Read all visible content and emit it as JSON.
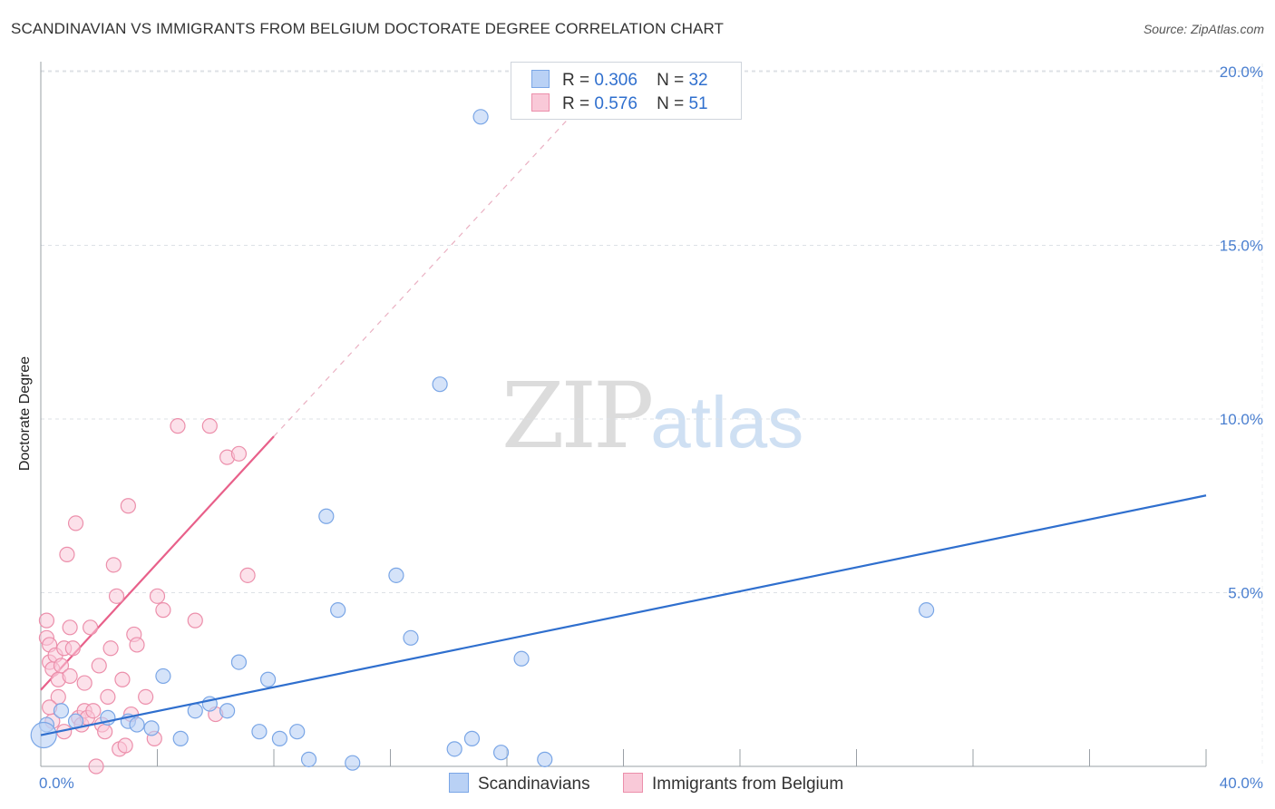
{
  "header": {
    "title": "SCANDINAVIAN VS IMMIGRANTS FROM BELGIUM DOCTORATE DEGREE CORRELATION CHART",
    "source": "Source: ZipAtlas.com"
  },
  "watermark": {
    "zip": "ZIP",
    "atlas": "atlas"
  },
  "legend": {
    "rows": [
      {
        "r_label": "R =",
        "r_value": "0.306",
        "n_label": "N =",
        "n_value": "32",
        "color": "#7aa6e6",
        "fill": "#b9d1f5"
      },
      {
        "r_label": "R =",
        "r_value": "0.576",
        "n_label": "N =",
        "n_value": "51",
        "color": "#ec8fab",
        "fill": "#f9c9d8"
      }
    ]
  },
  "bottom_legend": {
    "items": [
      {
        "label": "Scandinavians",
        "color": "#7aa6e6",
        "fill": "#b9d1f5"
      },
      {
        "label": "Immigrants from Belgium",
        "color": "#ec8fab",
        "fill": "#f9c9d8"
      }
    ]
  },
  "chart_data": {
    "type": "scatter",
    "title": "SCANDINAVIAN VS IMMIGRANTS FROM BELGIUM DOCTORATE DEGREE CORRELATION CHART",
    "xlabel": "",
    "ylabel": "Doctorate Degree",
    "xlim": [
      0,
      40
    ],
    "ylim": [
      0,
      21
    ],
    "x_tick_labels": [
      "0.0%",
      "40.0%"
    ],
    "y_ticks": [
      5,
      10,
      15,
      20
    ],
    "y_tick_labels": [
      "5.0%",
      "10.0%",
      "15.0%",
      "20.0%"
    ],
    "grid": true,
    "series": [
      {
        "name": "Scandinavians",
        "color": "#2f6fce",
        "marker_fill": "#b9d1f5",
        "marker_stroke": "#7aa6e6",
        "points": [
          [
            0.2,
            1.2
          ],
          [
            0.7,
            1.6
          ],
          [
            1.2,
            1.3
          ],
          [
            2.3,
            1.4
          ],
          [
            3.0,
            1.3
          ],
          [
            3.3,
            1.2
          ],
          [
            3.8,
            1.1
          ],
          [
            4.2,
            2.6
          ],
          [
            4.8,
            0.8
          ],
          [
            5.3,
            1.6
          ],
          [
            5.8,
            1.8
          ],
          [
            6.4,
            1.6
          ],
          [
            6.8,
            3.0
          ],
          [
            7.5,
            1.0
          ],
          [
            7.8,
            2.5
          ],
          [
            8.2,
            0.8
          ],
          [
            8.8,
            1.0
          ],
          [
            9.2,
            0.2
          ],
          [
            9.8,
            7.2
          ],
          [
            10.2,
            4.5
          ],
          [
            10.7,
            0.1
          ],
          [
            12.2,
            5.5
          ],
          [
            12.7,
            3.7
          ],
          [
            13.7,
            11.0
          ],
          [
            14.2,
            0.5
          ],
          [
            14.8,
            0.8
          ],
          [
            15.1,
            18.7
          ],
          [
            15.8,
            0.4
          ],
          [
            16.5,
            3.1
          ],
          [
            17.3,
            0.2
          ],
          [
            30.4,
            4.5
          ],
          [
            0.1,
            0.9
          ]
        ],
        "trendline": {
          "x": [
            0,
            40
          ],
          "y": [
            0.9,
            7.8
          ],
          "dashed_extension": false
        }
      },
      {
        "name": "Immigrants from Belgium",
        "color": "#e8608a",
        "marker_fill": "#f9c9d8",
        "marker_stroke": "#ec8fab",
        "points": [
          [
            0.2,
            4.2
          ],
          [
            0.2,
            3.7
          ],
          [
            0.3,
            3.5
          ],
          [
            0.3,
            3.0
          ],
          [
            0.4,
            2.8
          ],
          [
            0.5,
            3.2
          ],
          [
            0.6,
            2.5
          ],
          [
            0.7,
            2.9
          ],
          [
            0.8,
            3.4
          ],
          [
            0.9,
            6.1
          ],
          [
            1.0,
            4.0
          ],
          [
            1.1,
            3.4
          ],
          [
            1.2,
            7.0
          ],
          [
            1.3,
            1.4
          ],
          [
            1.4,
            1.2
          ],
          [
            1.5,
            1.6
          ],
          [
            1.6,
            1.4
          ],
          [
            1.7,
            4.0
          ],
          [
            1.8,
            1.6
          ],
          [
            1.9,
            0.0
          ],
          [
            2.0,
            2.9
          ],
          [
            2.1,
            1.2
          ],
          [
            2.2,
            1.0
          ],
          [
            2.4,
            3.4
          ],
          [
            2.5,
            5.8
          ],
          [
            2.6,
            4.9
          ],
          [
            2.7,
            0.5
          ],
          [
            2.8,
            2.5
          ],
          [
            2.9,
            0.6
          ],
          [
            3.0,
            7.5
          ],
          [
            3.1,
            1.5
          ],
          [
            3.2,
            3.8
          ],
          [
            3.3,
            3.5
          ],
          [
            3.6,
            2.0
          ],
          [
            3.9,
            0.8
          ],
          [
            4.0,
            4.9
          ],
          [
            4.2,
            4.5
          ],
          [
            4.7,
            9.8
          ],
          [
            5.3,
            4.2
          ],
          [
            5.8,
            9.8
          ],
          [
            6.0,
            1.5
          ],
          [
            6.4,
            8.9
          ],
          [
            6.8,
            9.0
          ],
          [
            7.1,
            5.5
          ],
          [
            0.4,
            1.3
          ],
          [
            0.6,
            2.0
          ],
          [
            1.0,
            2.6
          ],
          [
            1.5,
            2.4
          ],
          [
            0.8,
            1.0
          ],
          [
            0.3,
            1.7
          ],
          [
            2.3,
            2.0
          ]
        ],
        "trendline": {
          "x": [
            0,
            8
          ],
          "y": [
            2.2,
            9.5
          ],
          "dashed_extension": true,
          "dashed_to": [
            18.5,
            19.0
          ]
        }
      }
    ]
  }
}
